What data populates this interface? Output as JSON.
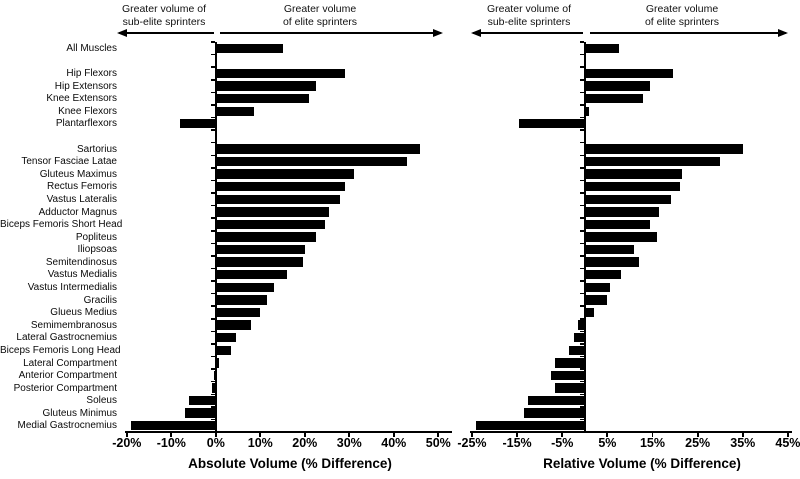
{
  "chart_data": {
    "type": "bar",
    "orientation": "horizontal",
    "bar_color": "#000000",
    "background": "#ffffff",
    "categories": [
      "All Muscles",
      "Hip Flexors",
      "Hip Extensors",
      "Knee Extensors",
      "Knee Flexors",
      "Plantarflexors",
      "Sartorius",
      "Tensor Fasciae Latae",
      "Gluteus Maximus",
      "Rectus Femoris",
      "Vastus Lateralis",
      "Adductor Magnus",
      "Biceps Femoris Short Head",
      "Popliteus",
      "Iliopsoas",
      "Semitendinosus",
      "Vastus Medialis",
      "Vastus Intermedialis",
      "Gracilis",
      "Glueus Medius",
      "Semimembranosus",
      "Lateral Gastrocnemius",
      "Biceps Femoris Long Head",
      "Lateral Compartment",
      "Anterior Compartment",
      "Posterior Compartment",
      "Soleus",
      "Gluteus Minimus",
      "Medial Gastrocnemius"
    ],
    "group_gaps_after": [
      "All Muscles",
      "Plantarflexors"
    ],
    "charts": [
      {
        "title": "Absolute Volume (% Difference)",
        "header_left": "Greater volume of\nsub-elite sprinters",
        "header_right": "Greater volume\nof elite sprinters",
        "xlim": [
          -20,
          50
        ],
        "xtick_labels": [
          "-20%",
          "-10%",
          "0%",
          "10%",
          "20%",
          "30%",
          "40%",
          "50%"
        ],
        "xtick_values": [
          -20,
          -10,
          0,
          10,
          20,
          30,
          40,
          50
        ],
        "values": [
          15,
          29,
          22.5,
          21,
          8.5,
          -8,
          46,
          43,
          31,
          29,
          28,
          25.5,
          24.5,
          22.5,
          20,
          19.5,
          16,
          13,
          11.5,
          10,
          8,
          4.5,
          3.5,
          0.7,
          -0.3,
          -0.8,
          -6,
          -7,
          -19
        ]
      },
      {
        "title": "Relative Volume (% Difference)",
        "header_left": "Greater volume of\nsub-elite sprinters",
        "header_right": "Greater volume\nof elite sprinters",
        "xlim": [
          -25,
          45
        ],
        "xtick_labels": [
          "-25%",
          "-15%",
          "-5%",
          "5%",
          "15%",
          "25%",
          "35%",
          "45%"
        ],
        "xtick_values": [
          -25,
          -15,
          -5,
          5,
          15,
          25,
          35,
          45
        ],
        "values": [
          7.5,
          19.5,
          14.5,
          13,
          1,
          -14.5,
          35,
          30,
          21.5,
          21,
          19,
          16.5,
          14.5,
          16,
          11,
          12,
          8,
          5.5,
          5,
          2,
          -1.5,
          -2.5,
          -3.5,
          -6.5,
          -7.5,
          -6.5,
          -12.5,
          -13.5,
          -24
        ]
      }
    ]
  }
}
